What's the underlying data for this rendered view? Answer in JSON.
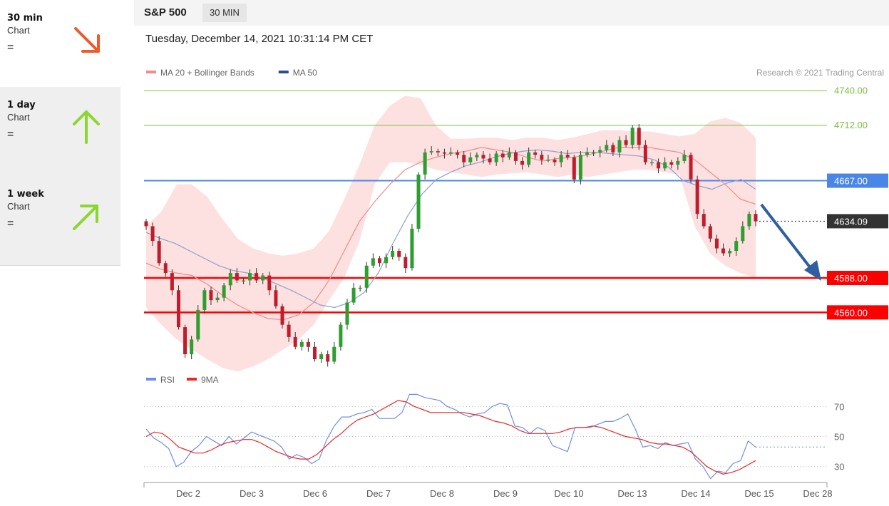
{
  "sidebar": {
    "items": [
      {
        "name": "30 min",
        "sub": "Chart",
        "eq": "=",
        "direction": "down",
        "color": "#f05a28"
      },
      {
        "name": "1 day",
        "sub": "Chart",
        "eq": "=",
        "direction": "up",
        "color": "#8cd630"
      },
      {
        "name": "1 week",
        "sub": "Chart",
        "eq": "=",
        "direction": "up-right",
        "color": "#8cd630"
      }
    ]
  },
  "header": {
    "title": "S&P 500",
    "interval": "30 MIN",
    "datetime": "Tuesday, December 14, 2021 10:31:14 PM CET"
  },
  "chart_data": [
    {
      "type": "candlestick",
      "legend": [
        {
          "label": "MA 20 + Bollinger Bands",
          "color": "#f28b8b"
        },
        {
          "label": "MA 50",
          "color": "#2c4f8a"
        }
      ],
      "credit": "Research © 2021 Trading Central",
      "ylim": [
        4522,
        4742
      ],
      "x_ticks": [
        "Dec 2",
        "Dec 3",
        "Dec 6",
        "Dec 7",
        "Dec 8",
        "Dec 9",
        "Dec 10",
        "Dec 13",
        "Dec 14",
        "Dec 15",
        "Dec 28"
      ],
      "levels": [
        {
          "value": "4740.00",
          "color": "#7cc142",
          "kind": "resistance"
        },
        {
          "value": "4712.00",
          "color": "#7cc142",
          "kind": "resistance"
        },
        {
          "value": "4667.00",
          "color": "#4a86e8",
          "kind": "pivot"
        },
        {
          "value": "4634.09",
          "color": "#333333",
          "kind": "last"
        },
        {
          "value": "4588.00",
          "color": "#ff0000",
          "kind": "support"
        },
        {
          "value": "4560.00",
          "color": "#ff0000",
          "kind": "support"
        }
      ],
      "up_color": "#2e9e2e",
      "down_color": "#c01c2c",
      "closes": [
        4630,
        4618,
        4600,
        4592,
        4578,
        4548,
        4526,
        4538,
        4562,
        4578,
        4570,
        4572,
        4582,
        4592,
        4586,
        4586,
        4592,
        4586,
        4590,
        4578,
        4565,
        4550,
        4540,
        4532,
        4536,
        4532,
        4522,
        4526,
        4520,
        4532,
        4550,
        4568,
        4580,
        4580,
        4598,
        4604,
        4600,
        4605,
        4610,
        4605,
        4596,
        4628,
        4672,
        4690,
        4691,
        4690,
        4689,
        4690,
        4688,
        4682,
        4686,
        4688,
        4685,
        4682,
        4689,
        4686,
        4690,
        4683,
        4680,
        4690,
        4688,
        4684,
        4684,
        4682,
        4688,
        4686,
        4668,
        4688,
        4690,
        4690,
        4692,
        4696,
        4690,
        4700,
        4696,
        4710,
        4696,
        4682,
        4682,
        4677,
        4682,
        4680,
        4683,
        4688,
        4668,
        4640,
        4630,
        4620,
        4612,
        4608,
        4610,
        4618,
        4630,
        4640,
        4634
      ],
      "ma50": [
        4625,
        4620,
        4616,
        4610,
        4604,
        4598,
        4594,
        4592,
        4588,
        4583,
        4578,
        4572,
        4566,
        4564,
        4568,
        4576,
        4592,
        4616,
        4638,
        4656,
        4668,
        4674,
        4679,
        4682,
        4686,
        4689,
        4691,
        4692,
        4691,
        4689,
        4690,
        4690,
        4689,
        4688,
        4687,
        4684,
        4678,
        4667,
        4663,
        4660,
        4665,
        4668,
        4660
      ],
      "ma20": [
        4600,
        4595,
        4592,
        4590,
        4583,
        4574,
        4566,
        4560,
        4555,
        4554,
        4558,
        4568,
        4586,
        4610,
        4634,
        4650,
        4664,
        4676,
        4682,
        4686,
        4689,
        4691,
        4694,
        4692,
        4690,
        4686,
        4683,
        4685,
        4686,
        4688,
        4691,
        4694,
        4694,
        4694,
        4692,
        4690,
        4684,
        4674,
        4664,
        4652,
        4648
      ],
      "bb_upper": [
        4630,
        4642,
        4664,
        4664,
        4654,
        4636,
        4620,
        4612,
        4608,
        4606,
        4608,
        4612,
        4626,
        4652,
        4680,
        4712,
        4728,
        4736,
        4734,
        4712,
        4701,
        4701,
        4702,
        4702,
        4700,
        4702,
        4702,
        4700,
        4702,
        4705,
        4708,
        4708,
        4707,
        4707,
        4705,
        4703,
        4705,
        4715,
        4718,
        4714,
        4702
      ],
      "bb_lower": [
        4564,
        4550,
        4538,
        4530,
        4522,
        4515,
        4512,
        4516,
        4522,
        4530,
        4538,
        4550,
        4570,
        4588,
        4618,
        4664,
        4682,
        4682,
        4680,
        4676,
        4674,
        4672,
        4670,
        4672,
        4673,
        4674,
        4672,
        4670,
        4672,
        4670,
        4672,
        4674,
        4676,
        4676,
        4674,
        4672,
        4630,
        4608,
        4598,
        4592,
        4588
      ]
    },
    {
      "type": "line",
      "legend": [
        {
          "label": "RSI",
          "color": "#6e8fe6"
        },
        {
          "label": "9MA",
          "color": "#e82828"
        }
      ],
      "ylim": [
        18,
        82
      ],
      "y_ticks": [
        "70",
        "50",
        "30"
      ],
      "rsi": [
        55,
        49,
        46,
        42,
        30,
        33,
        40,
        44,
        50,
        47,
        44,
        50,
        45,
        49,
        53,
        51,
        49,
        47,
        43,
        35,
        38,
        36,
        32,
        35,
        48,
        57,
        63,
        63,
        65,
        66,
        68,
        62,
        62,
        62,
        66,
        78,
        78,
        76,
        75,
        74,
        70,
        68,
        65,
        63,
        65,
        66,
        70,
        72,
        71,
        57,
        56,
        52,
        56,
        54,
        44,
        42,
        40,
        56,
        56,
        56,
        58,
        60,
        60,
        62,
        65,
        55,
        43,
        44,
        42,
        46,
        44,
        45,
        46,
        35,
        30,
        22,
        27,
        26,
        32,
        34,
        47,
        43
      ],
      "ma9": [
        50,
        53,
        52,
        48,
        43,
        41,
        39,
        39,
        41,
        44,
        46,
        47,
        48,
        48,
        46,
        43,
        40,
        38,
        36,
        35,
        35,
        38,
        43,
        48,
        52,
        57,
        61,
        63,
        65,
        68,
        71,
        74,
        73,
        70,
        68,
        66,
        66,
        66,
        66,
        66,
        65,
        64,
        62,
        60,
        59,
        57,
        54,
        52,
        52,
        52,
        52,
        53,
        55,
        56,
        56,
        57,
        56,
        54,
        52,
        50,
        49,
        48,
        46,
        45,
        45,
        44,
        43,
        40,
        35,
        30,
        27,
        25,
        26,
        28,
        31,
        34
      ]
    }
  ]
}
